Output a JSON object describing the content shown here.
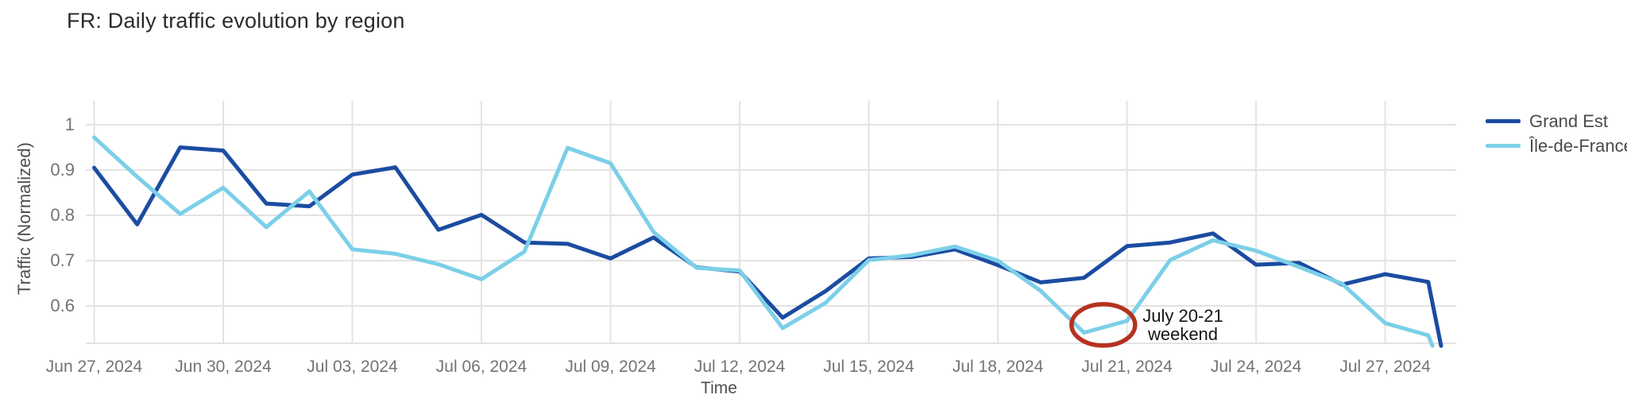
{
  "chart_data": {
    "type": "line",
    "title": "FR: Daily traffic evolution by region",
    "xlabel": "Time",
    "ylabel": "Traffic (Normalized)",
    "grid": true,
    "legend_position": "top-right-outside",
    "x_unit": "day offset from Jun 27, 2024",
    "xlim_days": [
      -0.2,
      31.7
    ],
    "ylim": [
      0.5,
      1.06
    ],
    "x_ticks": [
      {
        "day": 0,
        "label": "Jun 27, 2024"
      },
      {
        "day": 3,
        "label": "Jun 30, 2024"
      },
      {
        "day": 6,
        "label": "Jul 03, 2024"
      },
      {
        "day": 9,
        "label": "Jul 06, 2024"
      },
      {
        "day": 12,
        "label": "Jul 09, 2024"
      },
      {
        "day": 15,
        "label": "Jul 12, 2024"
      },
      {
        "day": 18,
        "label": "Jul 15, 2024"
      },
      {
        "day": 21,
        "label": "Jul 18, 2024"
      },
      {
        "day": 24,
        "label": "Jul 21, 2024"
      },
      {
        "day": 27,
        "label": "Jul 24, 2024"
      },
      {
        "day": 30,
        "label": "Jul 27, 2024"
      }
    ],
    "y_ticks": [
      {
        "value": 1,
        "label": "1"
      },
      {
        "value": 0.9,
        "label": "0.9"
      },
      {
        "value": 0.8,
        "label": "0.8"
      },
      {
        "value": 0.7,
        "label": "0.7"
      },
      {
        "value": 0.6,
        "label": "0.6"
      }
    ],
    "series": [
      {
        "name": "Grand Est",
        "color": "#1b4ca1",
        "points": [
          [
            0,
            0.905
          ],
          [
            1,
            0.78
          ],
          [
            2,
            0.95
          ],
          [
            3,
            0.943
          ],
          [
            4,
            0.826
          ],
          [
            5,
            0.82
          ],
          [
            6,
            0.89
          ],
          [
            7,
            0.906
          ],
          [
            8,
            0.768
          ],
          [
            9,
            0.801
          ],
          [
            10,
            0.74
          ],
          [
            11,
            0.737
          ],
          [
            12,
            0.705
          ],
          [
            13,
            0.751
          ],
          [
            14,
            0.685
          ],
          [
            15,
            0.676
          ],
          [
            16,
            0.574
          ],
          [
            17,
            0.633
          ],
          [
            18,
            0.705
          ],
          [
            19,
            0.708
          ],
          [
            20,
            0.725
          ],
          [
            21,
            0.69
          ],
          [
            22,
            0.652
          ],
          [
            23,
            0.662
          ],
          [
            24,
            0.732
          ],
          [
            25,
            0.74
          ],
          [
            26,
            0.76
          ],
          [
            27,
            0.691
          ],
          [
            28,
            0.695
          ],
          [
            29,
            0.647
          ],
          [
            30,
            0.67
          ],
          [
            31,
            0.653
          ],
          [
            31.3,
            0.512
          ]
        ]
      },
      {
        "name": "Île-de-France",
        "color": "#7ccfe8",
        "points": [
          [
            0,
            0.972
          ],
          [
            1,
            0.885
          ],
          [
            2,
            0.803
          ],
          [
            3,
            0.861
          ],
          [
            4,
            0.774
          ],
          [
            5,
            0.853
          ],
          [
            6,
            0.725
          ],
          [
            7,
            0.715
          ],
          [
            8,
            0.692
          ],
          [
            9,
            0.659
          ],
          [
            10,
            0.72
          ],
          [
            11,
            0.949
          ],
          [
            12,
            0.915
          ],
          [
            13,
            0.763
          ],
          [
            14,
            0.684
          ],
          [
            15,
            0.678
          ],
          [
            16,
            0.551
          ],
          [
            17,
            0.607
          ],
          [
            18,
            0.701
          ],
          [
            19,
            0.712
          ],
          [
            20,
            0.731
          ],
          [
            21,
            0.7
          ],
          [
            22,
            0.633
          ],
          [
            23,
            0.541
          ],
          [
            24,
            0.567
          ],
          [
            25,
            0.701
          ],
          [
            26,
            0.745
          ],
          [
            27,
            0.722
          ],
          [
            28,
            0.686
          ],
          [
            29,
            0.649
          ],
          [
            30,
            0.562
          ],
          [
            31,
            0.535
          ],
          [
            31.1,
            0.512
          ]
        ]
      }
    ],
    "annotation": {
      "line1": "July 20-21",
      "line2": "weekend",
      "circled_dates": "Jul 20-21, 2024",
      "circle_color": "#b5321f",
      "circle_center_day": 23.45,
      "circle_center_value": 0.558
    }
  }
}
